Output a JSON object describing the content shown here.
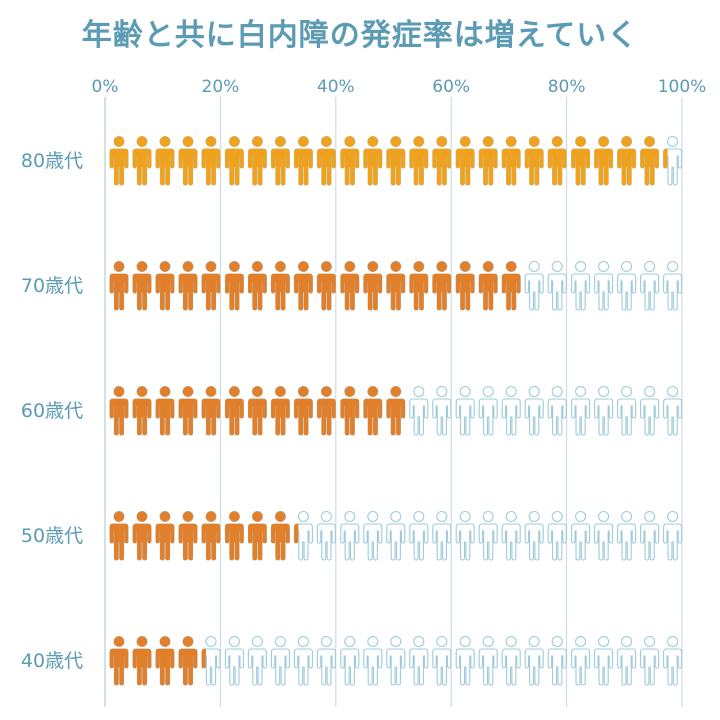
{
  "title": "年齢と共に白内障の発症率は増えていく",
  "colors": {
    "title": "#5b9bb4",
    "axis_text": "#5b9bb4",
    "grid": "#c4d7de",
    "icon_outline": "#9ecbda",
    "icon_fill_orange": "#f0a21e",
    "icon_fill_deep_orange": "#e27f2a"
  },
  "icon": "person-icon",
  "chart_data": {
    "type": "pictograph",
    "title": "年齢と共に白内障の発症率は増えていく",
    "x_ticks": [
      "0%",
      "20%",
      "40%",
      "60%",
      "80%",
      "100%"
    ],
    "xlim": [
      0,
      100
    ],
    "icons_per_row": 25,
    "categories": [
      "80歳代",
      "70歳代",
      "60歳代",
      "50歳代",
      "40歳代"
    ],
    "values": [
      97,
      72,
      52,
      33,
      17
    ],
    "unit": "%",
    "grid": true
  }
}
